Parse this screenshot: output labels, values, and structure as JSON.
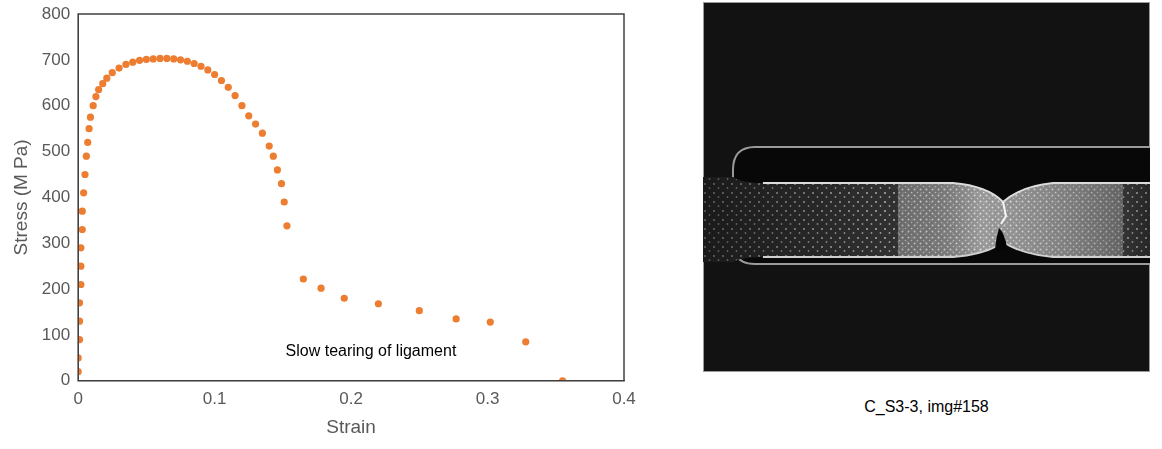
{
  "chart_data": {
    "type": "scatter",
    "x_label": "Strain",
    "y_label": "Stress (M Pa)",
    "annotation": "Slow tearing of ligament",
    "x": [
      0,
      0,
      0.001,
      0.001,
      0.001,
      0.002,
      0.002,
      0.002,
      0.003,
      0.003,
      0.004,
      0.005,
      0.006,
      0.007,
      0.008,
      0.009,
      0.011,
      0.013,
      0.015,
      0.018,
      0.021,
      0.025,
      0.03,
      0.035,
      0.04,
      0.045,
      0.05,
      0.055,
      0.06,
      0.065,
      0.07,
      0.075,
      0.08,
      0.085,
      0.09,
      0.095,
      0.1,
      0.105,
      0.11,
      0.115,
      0.12,
      0.125,
      0.13,
      0.135,
      0.14,
      0.143,
      0.146,
      0.149,
      0.151,
      0.153,
      0.165,
      0.178,
      0.195,
      0.22,
      0.25,
      0.277,
      0.302,
      0.328,
      0.355
    ],
    "values": [
      20,
      50,
      90,
      130,
      170,
      210,
      250,
      290,
      330,
      370,
      410,
      450,
      490,
      520,
      550,
      575,
      600,
      620,
      635,
      648,
      660,
      672,
      682,
      690,
      695,
      699,
      701,
      702,
      703,
      703,
      702,
      700,
      697,
      692,
      686,
      678,
      668,
      655,
      640,
      622,
      600,
      578,
      560,
      540,
      512,
      490,
      460,
      430,
      390,
      338,
      222,
      202,
      180,
      168,
      153,
      135,
      128,
      85,
      0
    ],
    "color": "#ed7d31",
    "marker": "circle",
    "xlim": [
      0,
      0.4
    ],
    "xticks": [
      0,
      0.1,
      0.2,
      0.3,
      0.4
    ],
    "ylim": [
      0,
      800
    ],
    "yticks": [
      0,
      100,
      200,
      300,
      400,
      500,
      600,
      700,
      800
    ],
    "grid": false
  },
  "image": {
    "caption": "C_S3-3, img#158"
  }
}
